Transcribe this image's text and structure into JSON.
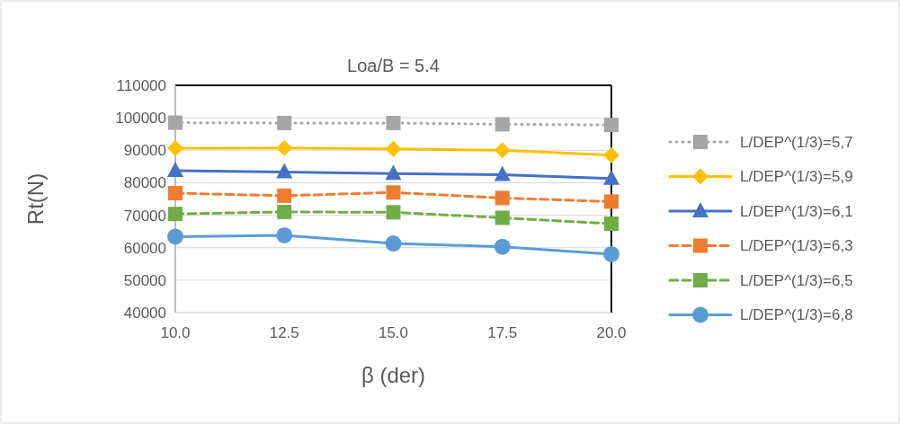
{
  "chart_data": {
    "type": "line",
    "title": "Loa/B = 5.4",
    "xlabel": "β (der)",
    "ylabel": "Rt(N)",
    "x": [
      10,
      12.5,
      15,
      17.5,
      20
    ],
    "xlim": [
      10,
      20
    ],
    "xticks": [
      {
        "value": 10,
        "label": "10.0"
      },
      {
        "value": 12.5,
        "label": "12.5"
      },
      {
        "value": 15,
        "label": "15.0"
      },
      {
        "value": 17.5,
        "label": "17.5"
      },
      {
        "value": 20,
        "label": "20.0"
      }
    ],
    "ylim": [
      40000,
      110000
    ],
    "yticks": [
      40000,
      50000,
      60000,
      70000,
      80000,
      90000,
      100000,
      110000
    ],
    "grid": "y",
    "legend": "right",
    "series": [
      {
        "name": "L/DEP^(1/3)=5,7",
        "color": "#a5a5a5",
        "marker": "square",
        "line_style": "dotted",
        "values": [
          98500,
          98400,
          98400,
          98000,
          97800
        ]
      },
      {
        "name": "L/DEP^(1/3)=5,9",
        "color": "#ffc000",
        "marker": "diamond",
        "line_style": "solid",
        "values": [
          90600,
          90700,
          90400,
          90000,
          88500
        ]
      },
      {
        "name": "L/DEP^(1/3)=6,1",
        "color": "#4472c4",
        "marker": "triangle",
        "line_style": "solid",
        "values": [
          83700,
          83300,
          82800,
          82500,
          81300
        ]
      },
      {
        "name": "L/DEP^(1/3)=6,3",
        "color": "#ed7d31",
        "marker": "square",
        "line_style": "dashed",
        "values": [
          76800,
          76000,
          77000,
          75300,
          74200
        ]
      },
      {
        "name": "L/DEP^(1/3)=6,5",
        "color": "#70ad47",
        "marker": "square",
        "line_style": "dashed",
        "values": [
          70400,
          71000,
          70900,
          69200,
          67400
        ]
      },
      {
        "name": "L/DEP^(1/3)=6,8",
        "color": "#5b9bd5",
        "marker": "circle",
        "line_style": "solid",
        "values": [
          63400,
          63800,
          61300,
          60300,
          58000
        ]
      }
    ]
  }
}
